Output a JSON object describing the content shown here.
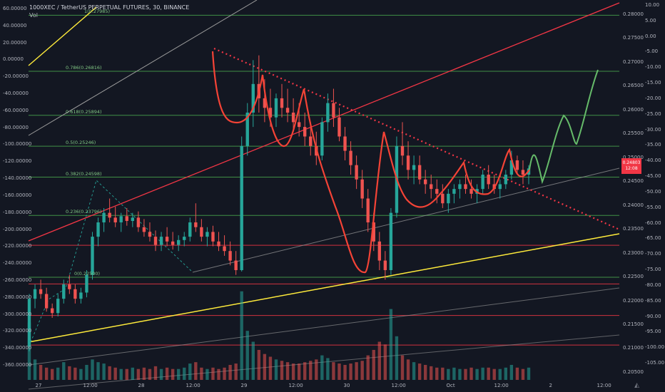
{
  "header": {
    "symbol": "1000XEC / TetherUS PERPETUAL FUTURES, 30, BINANCE",
    "volume_label": "Vol"
  },
  "price_tag": {
    "price": "0.24803",
    "countdown": "12:08"
  },
  "colors": {
    "background": "#131722",
    "candle_up": "#26a69a",
    "candle_down": "#ef5350",
    "fib_line": "#4caf50",
    "red_line": "#f23645",
    "yellow_line": "#ffeb3b",
    "trend_red": "#f23645",
    "grey_channel": "#9e9e9e",
    "projection_green": "#66bb6a",
    "pattern_red": "#f44336"
  },
  "chart_data": {
    "type": "candlestick",
    "title": "1000XEC / TetherUS PERPETUAL FUTURES, 30, BINANCE",
    "right_axis": {
      "ticks": [
        0.28,
        0.275,
        0.27,
        0.265,
        0.26,
        0.255,
        0.25,
        0.245,
        0.24,
        0.235,
        0.23,
        0.225,
        0.22,
        0.215,
        0.21,
        0.205
      ],
      "labels": [
        "0.28000",
        "0.27500",
        "0.27000",
        "0.26500",
        "0.26000",
        "0.25500",
        "0.25000",
        "0.24500",
        "0.24000",
        "0.23500",
        "0.23000",
        "0.22500",
        "0.22000",
        "0.21500",
        "0.21000",
        "0.20500"
      ],
      "range": [
        0.2035,
        0.2825
      ]
    },
    "left_axis": {
      "ticks": [
        60,
        40,
        20,
        0,
        -20,
        -40,
        -60,
        -80,
        -100,
        -120,
        -140,
        -160,
        -180,
        -200,
        -220,
        -240,
        -260,
        -280,
        -300,
        -320,
        -340,
        -360
      ],
      "labels": [
        "60.00000",
        "40.00000",
        "20.00000",
        "0.00000",
        "-20.00000",
        "-40.00000",
        "-60.00000",
        "-80.00000",
        "-100.00000",
        "-120.00000",
        "-140.00000",
        "-160.00000",
        "-180.00000",
        "-200.00000",
        "-220.00000",
        "-240.00000",
        "-260.00000",
        "-280.00000",
        "-300.00000",
        "-320.00000",
        "-340.00000",
        "-360.00000"
      ]
    },
    "far_right_axis": {
      "ticks": [
        10,
        5,
        0,
        -5,
        -10,
        -15,
        -20,
        -25,
        -30,
        -35,
        -40,
        -45,
        -50,
        -55,
        -60,
        -65,
        -70,
        -75,
        -80,
        -85,
        -90,
        -95,
        -100,
        -105
      ],
      "labels": [
        "10.00",
        "5.00",
        "0.00",
        "-5.00",
        "-10.00",
        "-15.00",
        "-20.00",
        "-25.00",
        "-30.00",
        "-35.00",
        "-40.00",
        "-45.00",
        "-50.00",
        "-55.00",
        "-60.00",
        "-65.00",
        "-70.00",
        "-75.00",
        "-80.00",
        "-85.00",
        "-90.00",
        "-95.00",
        "-100.00",
        "-105.00"
      ]
    },
    "x_axis": {
      "labels": [
        "27",
        "12:00",
        "28",
        "12:00",
        "29",
        "12:00",
        "30",
        "12:00",
        "Oct",
        "12:00",
        "2",
        "12:00"
      ],
      "bar_index": [
        4,
        28,
        52,
        76,
        100,
        124,
        148,
        172,
        196,
        220,
        244,
        268
      ],
      "total_bars": 276
    },
    "fib_levels": [
      {
        "label": "1(0.27985)",
        "price": 0.2799
      },
      {
        "label": "0.786(0.26816)",
        "price": 0.26816
      },
      {
        "label": "0.618(0.25894)",
        "price": 0.25894
      },
      {
        "label": "0.5(0.25246)",
        "price": 0.25246
      },
      {
        "label": "0.382(0.24598)",
        "price": 0.24598
      },
      {
        "label": "0.236(0.23796)",
        "price": 0.23796
      },
      {
        "label": "0(0.22500)",
        "price": 0.225
      }
    ],
    "horizontal_red_levels": [
      0.2317,
      0.2236,
      0.217,
      0.2108
    ],
    "last_price": 0.24803,
    "ohlc": [
      [
        0.2105,
        0.2215,
        0.2095,
        0.2205
      ],
      [
        0.2205,
        0.2235,
        0.2185,
        0.2225
      ],
      [
        0.2225,
        0.2245,
        0.2205,
        0.2215
      ],
      [
        0.2215,
        0.2228,
        0.2178,
        0.2185
      ],
      [
        0.2185,
        0.2195,
        0.2165,
        0.2175
      ],
      [
        0.2175,
        0.2215,
        0.2168,
        0.2205
      ],
      [
        0.2205,
        0.2245,
        0.2195,
        0.2235
      ],
      [
        0.2235,
        0.2255,
        0.2215,
        0.2225
      ],
      [
        0.2225,
        0.2235,
        0.2195,
        0.2205
      ],
      [
        0.2205,
        0.2228,
        0.2195,
        0.2218
      ],
      [
        0.2218,
        0.2265,
        0.2208,
        0.2255
      ],
      [
        0.2255,
        0.2345,
        0.2245,
        0.2335
      ],
      [
        0.2335,
        0.2375,
        0.2315,
        0.2365
      ],
      [
        0.2365,
        0.2395,
        0.2345,
        0.2385
      ],
      [
        0.2385,
        0.2415,
        0.2365,
        0.2375
      ],
      [
        0.2375,
        0.2398,
        0.2355,
        0.2365
      ],
      [
        0.2365,
        0.2385,
        0.2345,
        0.2378
      ],
      [
        0.2378,
        0.2395,
        0.2358,
        0.2368
      ],
      [
        0.2368,
        0.2385,
        0.2355,
        0.2375
      ],
      [
        0.2375,
        0.2388,
        0.2345,
        0.2355
      ],
      [
        0.2355,
        0.2372,
        0.2335,
        0.2345
      ],
      [
        0.2345,
        0.2365,
        0.2325,
        0.2335
      ],
      [
        0.2335,
        0.2348,
        0.2305,
        0.2318
      ],
      [
        0.2318,
        0.2345,
        0.2305,
        0.2335
      ],
      [
        0.2335,
        0.2355,
        0.2315,
        0.2325
      ],
      [
        0.2325,
        0.2345,
        0.2308,
        0.2318
      ],
      [
        0.2318,
        0.2338,
        0.2305,
        0.2328
      ],
      [
        0.2328,
        0.2345,
        0.2315,
        0.2335
      ],
      [
        0.2335,
        0.2375,
        0.2325,
        0.2365
      ],
      [
        0.2365,
        0.2405,
        0.2345,
        0.2355
      ],
      [
        0.2355,
        0.2372,
        0.2325,
        0.2335
      ],
      [
        0.2335,
        0.2355,
        0.2315,
        0.2345
      ],
      [
        0.2345,
        0.2358,
        0.2315,
        0.2325
      ],
      [
        0.2325,
        0.2345,
        0.2305,
        0.2315
      ],
      [
        0.2315,
        0.2338,
        0.2295,
        0.2305
      ],
      [
        0.2305,
        0.2325,
        0.2275,
        0.2285
      ],
      [
        0.2285,
        0.2305,
        0.2255,
        0.2265
      ],
      [
        0.2265,
        0.2545,
        0.2262,
        0.2525
      ],
      [
        0.2525,
        0.2615,
        0.2505,
        0.2595
      ],
      [
        0.2595,
        0.2705,
        0.2565,
        0.2655
      ],
      [
        0.2655,
        0.2715,
        0.2595,
        0.2625
      ],
      [
        0.2625,
        0.2665,
        0.2575,
        0.2605
      ],
      [
        0.2605,
        0.2645,
        0.2565,
        0.2585
      ],
      [
        0.2585,
        0.2635,
        0.2565,
        0.2625
      ],
      [
        0.2625,
        0.2655,
        0.2585,
        0.2605
      ],
      [
        0.2605,
        0.2645,
        0.2575,
        0.2595
      ],
      [
        0.2595,
        0.2625,
        0.2555,
        0.2575
      ],
      [
        0.2575,
        0.2615,
        0.2545,
        0.2565
      ],
      [
        0.2565,
        0.2595,
        0.2525,
        0.2545
      ],
      [
        0.2545,
        0.2575,
        0.2505,
        0.2525
      ],
      [
        0.2525,
        0.2555,
        0.2485,
        0.2505
      ],
      [
        0.2505,
        0.2585,
        0.2495,
        0.2575
      ],
      [
        0.2575,
        0.2635,
        0.2555,
        0.2615
      ],
      [
        0.2615,
        0.2645,
        0.2565,
        0.2585
      ],
      [
        0.2585,
        0.2605,
        0.2535,
        0.2545
      ],
      [
        0.2545,
        0.2565,
        0.2495,
        0.2515
      ],
      [
        0.2515,
        0.2535,
        0.2465,
        0.2485
      ],
      [
        0.2485,
        0.2505,
        0.2435,
        0.2455
      ],
      [
        0.2455,
        0.2475,
        0.2395,
        0.2415
      ],
      [
        0.2415,
        0.2435,
        0.2345,
        0.2365
      ],
      [
        0.2365,
        0.2385,
        0.2305,
        0.2325
      ],
      [
        0.2325,
        0.2345,
        0.2265,
        0.2285
      ],
      [
        0.2285,
        0.2305,
        0.2245,
        0.2265
      ],
      [
        0.2265,
        0.2395,
        0.2255,
        0.2385
      ],
      [
        0.2385,
        0.2545,
        0.2375,
        0.2525
      ],
      [
        0.2525,
        0.2575,
        0.2485,
        0.2505
      ],
      [
        0.2505,
        0.2535,
        0.2455,
        0.2475
      ],
      [
        0.2475,
        0.2505,
        0.2445,
        0.2485
      ],
      [
        0.2485,
        0.2505,
        0.2445,
        0.2455
      ],
      [
        0.2455,
        0.2475,
        0.2425,
        0.2445
      ],
      [
        0.2445,
        0.2465,
        0.2415,
        0.2435
      ],
      [
        0.2435,
        0.2455,
        0.2405,
        0.2425
      ],
      [
        0.2425,
        0.2445,
        0.2395,
        0.2405
      ],
      [
        0.2405,
        0.2435,
        0.2385,
        0.2425
      ],
      [
        0.2425,
        0.2445,
        0.2405,
        0.2435
      ],
      [
        0.2435,
        0.2455,
        0.2415,
        0.2445
      ],
      [
        0.2445,
        0.2465,
        0.2425,
        0.2435
      ],
      [
        0.2435,
        0.2455,
        0.2415,
        0.2425
      ],
      [
        0.2425,
        0.2445,
        0.2405,
        0.2435
      ],
      [
        0.2435,
        0.2475,
        0.2425,
        0.2465
      ],
      [
        0.2465,
        0.2485,
        0.2435,
        0.2445
      ],
      [
        0.2445,
        0.2465,
        0.2425,
        0.2435
      ],
      [
        0.2435,
        0.2455,
        0.2415,
        0.2445
      ],
      [
        0.2445,
        0.2475,
        0.2435,
        0.2465
      ],
      [
        0.2465,
        0.2515,
        0.2455,
        0.2495
      ],
      [
        0.2495,
        0.2505,
        0.2465,
        0.2475
      ],
      [
        0.2475,
        0.2495,
        0.2445,
        0.2465
      ],
      [
        0.2465,
        0.2485,
        0.2445,
        0.2478
      ]
    ],
    "volume_range": [
      0,
      6800
    ],
    "volume": [
      4200,
      1500,
      1100,
      900,
      800,
      900,
      1300,
      1000,
      900,
      800,
      1100,
      1500,
      1300,
      1200,
      1000,
      900,
      800,
      800,
      900,
      800,
      900,
      800,
      1000,
      800,
      900,
      800,
      800,
      900,
      1200,
      1300,
      900,
      800,
      900,
      800,
      900,
      1100,
      1200,
      6500,
      3600,
      2800,
      2200,
      1900,
      1700,
      1500,
      1400,
      1300,
      1200,
      1200,
      1300,
      1400,
      1500,
      1800,
      1600,
      1300,
      1200,
      1100,
      1200,
      1300,
      1400,
      1800,
      2200,
      2800,
      2600,
      5200,
      3200,
      1800,
      1500,
      1300,
      1200,
      1100,
      1000,
      900,
      900,
      800,
      900,
      800,
      800,
      900,
      800,
      900,
      900,
      800,
      800,
      900,
      1100,
      900,
      800,
      900
    ]
  }
}
